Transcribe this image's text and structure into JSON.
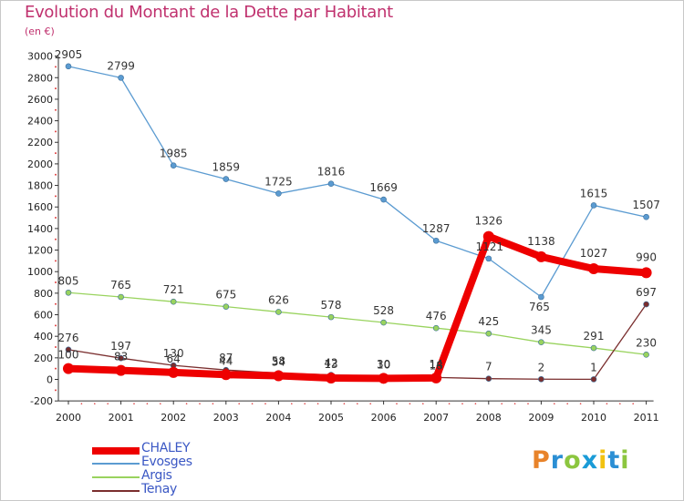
{
  "title": "Evolution du Montant de la Dette par Habitant",
  "subtitle": "(en €)",
  "logo": {
    "text": "Proxiti",
    "letters": [
      "P",
      "r",
      "o",
      "x",
      "i",
      "t",
      "i"
    ],
    "colors": [
      "#e8832a",
      "#2b8fd4",
      "#8cc63f",
      "#1a9bd7",
      "#f2c20f",
      "#2b8fd4",
      "#8cc63f"
    ]
  },
  "chart_data": {
    "type": "line",
    "title": "Evolution du Montant de la Dette par Habitant",
    "subtitle": "(en €)",
    "x": [
      "2000",
      "2001",
      "2002",
      "2003",
      "2004",
      "2005",
      "2006",
      "2007",
      "2008",
      "2009",
      "2010",
      "2011"
    ],
    "y_ticks": [
      "-200",
      "0",
      "200",
      "400",
      "600",
      "800",
      "1000",
      "1200",
      "1400",
      "1600",
      "1800",
      "2000",
      "2200",
      "2400",
      "2600",
      "2800",
      "3000"
    ],
    "ylim": [
      -200,
      3000
    ],
    "grid": false,
    "legend_position": "bottom-left",
    "series": [
      {
        "name": "CHALEY",
        "color": "#ee0000",
        "values": [
          100,
          83,
          64,
          44,
          34,
          13,
          10,
          14,
          1326,
          1138,
          1027,
          990
        ],
        "labels": [
          "100",
          "83",
          "64",
          "44",
          "34",
          "13",
          "10",
          "14",
          "1326",
          "1138",
          "1027",
          "990"
        ]
      },
      {
        "name": "Evosges",
        "color": "#5b9bd1",
        "values": [
          2905,
          2799,
          1985,
          1859,
          1725,
          1816,
          1669,
          1287,
          1121,
          765,
          1615,
          1507
        ],
        "labels": [
          "2905",
          "2799",
          "1985",
          "1859",
          "1725",
          "1816",
          "1669",
          "1287",
          "1121",
          "765",
          "1615",
          "1507"
        ]
      },
      {
        "name": "Argis",
        "color": "#99d35e",
        "values": [
          805,
          765,
          721,
          675,
          626,
          578,
          528,
          476,
          425,
          345,
          291,
          230
        ],
        "labels": [
          "805",
          "765",
          "721",
          "675",
          "626",
          "578",
          "528",
          "476",
          "425",
          "345",
          "291",
          "230"
        ]
      },
      {
        "name": "Tenay",
        "color": "#7a2e2e",
        "values": [
          276,
          197,
          130,
          87,
          58,
          42,
          30,
          18,
          7,
          2,
          1,
          697
        ],
        "labels": [
          "276",
          "197",
          "130",
          "87",
          "58",
          "42",
          "30",
          "18",
          "7",
          "2",
          "1",
          "697"
        ]
      }
    ]
  }
}
